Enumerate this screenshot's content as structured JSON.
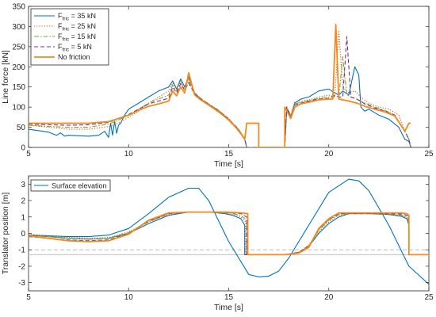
{
  "chart_data": [
    {
      "type": "line",
      "xlabel": "Time [s]",
      "ylabel": "Line force [kN]",
      "xlim": [
        5,
        25
      ],
      "ylim": [
        0,
        350
      ],
      "xticks": [
        "5",
        "10",
        "15",
        "20",
        "25"
      ],
      "yticks": [
        "0",
        "50",
        "100",
        "150",
        "200",
        "250",
        "300",
        "350"
      ],
      "grid": false,
      "legend_position": "top-left",
      "series": [
        {
          "name": "F_fric = 35 kN",
          "legend_main": "F",
          "legend_sub": "fric",
          "legend_rest": " = 35 kN",
          "color": "#0072BD",
          "dash": "solid",
          "x": [
            5,
            6,
            6.4,
            6.6,
            6.8,
            7,
            7.5,
            8,
            8.5,
            8.8,
            9.0,
            9.1,
            9.2,
            9.3,
            9.4,
            9.5,
            9.6,
            9.8,
            10,
            10.5,
            11,
            11.5,
            12,
            12.2,
            12.4,
            12.6,
            12.8,
            13,
            13.3,
            13.6,
            14,
            14.5,
            15,
            15.5,
            15.8,
            15.9,
            17.8,
            17.9,
            18.1,
            18.3,
            18.6,
            19,
            19.5,
            20,
            20.3,
            20.5,
            20.7,
            21,
            21.3,
            21.5,
            21.6,
            21.8,
            22,
            22.5,
            23,
            23.5,
            23.8,
            24,
            24.1
          ],
          "y": [
            45,
            38,
            30,
            36,
            28,
            30,
            29,
            28,
            30,
            40,
            25,
            60,
            30,
            65,
            35,
            55,
            60,
            80,
            95,
            110,
            125,
            140,
            150,
            165,
            145,
            170,
            150,
            175,
            135,
            120,
            105,
            90,
            70,
            40,
            20,
            0,
            0,
            95,
            75,
            110,
            120,
            125,
            140,
            145,
            135,
            130,
            140,
            130,
            200,
            180,
            100,
            90,
            95,
            80,
            70,
            50,
            20,
            15,
            0
          ]
        },
        {
          "name": "F_fric = 25 kN",
          "legend_main": "F",
          "legend_sub": "fric",
          "legend_rest": " = 25 kN",
          "color": "#D95319",
          "dash": "dotted",
          "x": [
            5,
            6,
            7,
            8,
            9,
            9.5,
            10,
            10.5,
            11,
            11.5,
            12,
            12.2,
            12.4,
            12.6,
            12.8,
            13,
            13.3,
            13.6,
            14,
            14.5,
            15,
            15.5,
            15.8,
            15.9,
            17.8,
            17.9,
            18.1,
            18.3,
            18.6,
            19,
            19.5,
            20,
            20.3,
            20.5,
            20.7,
            21,
            21.3,
            21.6,
            22,
            22.5,
            23,
            23.5,
            23.8,
            24,
            24.1
          ],
          "y": [
            55,
            50,
            45,
            45,
            52,
            60,
            75,
            90,
            110,
            125,
            140,
            160,
            145,
            165,
            150,
            170,
            135,
            120,
            108,
            92,
            72,
            45,
            22,
            0,
            0,
            100,
            80,
            112,
            115,
            118,
            125,
            130,
            125,
            290,
            150,
            135,
            140,
            125,
            110,
            100,
            95,
            80,
            40,
            20,
            0
          ]
        },
        {
          "name": "F_fric = 15 kN",
          "legend_main": "F",
          "legend_sub": "fric",
          "legend_rest": " = 15 kN",
          "color": "#77AC30",
          "dash": "dashdot",
          "x": [
            5,
            6,
            7,
            8,
            9,
            9.5,
            10,
            10.5,
            11,
            11.5,
            12,
            12.2,
            12.4,
            12.6,
            12.8,
            13,
            13.3,
            13.6,
            14,
            14.5,
            15,
            15.5,
            15.8,
            15.9,
            17.8,
            17.9,
            18.1,
            18.3,
            18.6,
            19,
            19.5,
            20,
            20.3,
            20.5,
            20.7,
            20.9,
            21.1,
            21.4,
            21.8,
            22.3,
            22.8,
            23.3,
            23.8,
            24,
            24.1
          ],
          "y": [
            55,
            52,
            50,
            50,
            58,
            68,
            80,
            95,
            110,
            120,
            130,
            155,
            140,
            160,
            145,
            165,
            135,
            122,
            108,
            92,
            70,
            45,
            20,
            0,
            0,
            100,
            78,
            108,
            112,
            116,
            122,
            125,
            130,
            125,
            225,
            130,
            125,
            120,
            110,
            100,
            92,
            80,
            40,
            20,
            0
          ]
        },
        {
          "name": "F_fric = 5 kN",
          "legend_main": "F",
          "legend_sub": "fric",
          "legend_rest": " = 5 kN",
          "color": "#7E2F8E",
          "dash": "dashed",
          "x": [
            5,
            6,
            7,
            8,
            9,
            9.5,
            10,
            10.5,
            11,
            11.5,
            12,
            12.2,
            12.4,
            12.6,
            12.8,
            13,
            13.3,
            13.6,
            14,
            14.5,
            15,
            15.5,
            15.8,
            15.9,
            17.8,
            17.9,
            18.1,
            18.3,
            18.6,
            19,
            19.5,
            20,
            20.3,
            20.5,
            20.7,
            20.9,
            21.1,
            21.4,
            21.8,
            22.3,
            22.8,
            23.3,
            23.8,
            24,
            24.1
          ],
          "y": [
            58,
            56,
            55,
            56,
            62,
            72,
            82,
            95,
            108,
            115,
            122,
            150,
            135,
            158,
            142,
            160,
            132,
            120,
            107,
            90,
            70,
            44,
            20,
            0,
            0,
            100,
            76,
            105,
            110,
            115,
            120,
            122,
            128,
            125,
            125,
            275,
            125,
            120,
            108,
            98,
            90,
            80,
            40,
            20,
            0
          ]
        },
        {
          "name": "No friction",
          "legend_main": "No friction",
          "legend_sub": "",
          "legend_rest": "",
          "color": "#EDB120",
          "stroke": "#F28A1D",
          "dash": "solid",
          "x": [
            5,
            6,
            7,
            8,
            9,
            9.5,
            10,
            10.5,
            11,
            11.5,
            12,
            12.2,
            12.4,
            12.6,
            12.8,
            13,
            13.3,
            13.6,
            14,
            14.5,
            15,
            15.5,
            15.8,
            15.9,
            16.5,
            16.5,
            17.8,
            17.8,
            18.1,
            18.3,
            18.6,
            19,
            19.5,
            20,
            20.2,
            20.35,
            20.5,
            20.7,
            21,
            21.4,
            21.8,
            22.3,
            22.8,
            23.3,
            23.8,
            24,
            24.1
          ],
          "y": [
            60,
            60,
            60,
            60,
            64,
            72,
            80,
            92,
            102,
            108,
            115,
            140,
            128,
            150,
            135,
            185,
            130,
            118,
            105,
            88,
            68,
            42,
            20,
            60,
            60,
            0,
            0,
            100,
            72,
            100,
            108,
            112,
            118,
            120,
            120,
            305,
            120,
            118,
            115,
            110,
            102,
            95,
            88,
            78,
            40,
            60,
            60
          ]
        }
      ]
    },
    {
      "type": "line",
      "xlabel": "Time [s]",
      "ylabel": "Translator position [m]",
      "xlim": [
        5,
        25
      ],
      "ylim": [
        -3.5,
        3.5
      ],
      "xticks": [
        "5",
        "10",
        "15",
        "20",
        "25"
      ],
      "yticks": [
        "-3",
        "-2",
        "-1",
        "0",
        "1",
        "2",
        "3"
      ],
      "grid": false,
      "legend_position": "top-left",
      "reference_lines": [
        {
          "y": -1.0,
          "color": "#BDBDBD",
          "dash": "dashed"
        },
        {
          "y": -1.3,
          "color": "#BDBDBD",
          "dash": "solid"
        }
      ],
      "series": [
        {
          "name": "Surface elevation",
          "color": "#0072BD",
          "dash": "solid",
          "x": [
            5,
            6,
            7,
            8,
            9,
            10,
            11,
            12,
            13,
            13.5,
            14,
            15,
            16,
            16.5,
            17,
            17.5,
            18,
            19,
            20,
            21,
            21.5,
            22,
            23,
            24,
            25
          ],
          "y": [
            -0.1,
            -0.15,
            -0.2,
            -0.2,
            -0.1,
            0.3,
            1.2,
            2.2,
            2.75,
            2.75,
            2.0,
            -0.5,
            -2.5,
            -2.65,
            -2.6,
            -2.3,
            -1.5,
            0.5,
            2.5,
            3.3,
            3.2,
            2.6,
            0.5,
            -2.0,
            -3.1
          ]
        },
        {
          "name": "F_fric = 35 kN",
          "color": "#0072BD",
          "dash": "solid",
          "x": [
            5,
            6,
            7,
            8,
            9,
            10,
            11,
            12,
            13,
            14,
            14.8,
            15.2,
            15.6,
            15.8,
            15.8,
            17.8,
            18.5,
            19,
            19.5,
            20,
            20.5,
            21,
            22,
            23,
            23.6,
            23.9,
            24,
            24,
            25
          ],
          "y": [
            -0.1,
            -0.2,
            -0.3,
            -0.35,
            -0.3,
            0.0,
            0.6,
            1.1,
            1.3,
            1.3,
            1.2,
            1.1,
            0.9,
            0.5,
            -1.3,
            -1.3,
            -1.2,
            -0.8,
            0.0,
            0.6,
            1.0,
            1.2,
            1.2,
            1.15,
            1.05,
            0.9,
            0.5,
            -1.3,
            -1.3
          ]
        },
        {
          "name": "F_fric = 25 kN",
          "color": "#D95319",
          "dash": "dotted",
          "x": [
            5,
            6,
            7,
            8,
            9,
            10,
            11,
            12,
            13,
            14,
            14.8,
            15.2,
            15.6,
            15.85,
            15.85,
            17.8,
            18.5,
            19,
            19.5,
            20,
            20.5,
            21,
            22,
            23,
            23.6,
            23.9,
            24,
            24,
            25
          ],
          "y": [
            -0.05,
            -0.15,
            -0.25,
            -0.3,
            -0.25,
            0.1,
            0.7,
            1.15,
            1.3,
            1.3,
            1.22,
            1.15,
            1.0,
            0.7,
            -1.3,
            -1.3,
            -1.15,
            -0.7,
            0.1,
            0.7,
            1.1,
            1.2,
            1.2,
            1.15,
            1.1,
            0.95,
            0.6,
            -1.3,
            -1.3
          ]
        },
        {
          "name": "F_fric = 15 kN",
          "color": "#77AC30",
          "dash": "dashdot",
          "x": [
            5,
            6,
            7,
            8,
            9,
            10,
            11,
            12,
            13,
            14,
            14.8,
            15.2,
            15.6,
            15.9,
            15.9,
            17.8,
            18.5,
            19,
            19.5,
            20,
            20.5,
            21,
            22,
            23,
            23.6,
            23.9,
            24,
            24,
            25
          ],
          "y": [
            -0.1,
            -0.2,
            -0.3,
            -0.35,
            -0.3,
            0.05,
            0.7,
            1.2,
            1.3,
            1.3,
            1.25,
            1.2,
            1.1,
            0.8,
            -1.3,
            -1.3,
            -1.15,
            -0.75,
            0.2,
            0.8,
            1.15,
            1.2,
            1.2,
            1.18,
            1.12,
            1.0,
            0.7,
            -1.3,
            -1.3
          ]
        },
        {
          "name": "F_fric = 5 kN",
          "color": "#7E2F8E",
          "dash": "dashed",
          "x": [
            5,
            6,
            7,
            8,
            9,
            10,
            11,
            12,
            13,
            14,
            14.8,
            15.2,
            15.6,
            15.9,
            15.9,
            17.8,
            18.5,
            19,
            19.5,
            20,
            20.5,
            21,
            22,
            23,
            23.6,
            23.9,
            24,
            24,
            25
          ],
          "y": [
            -0.2,
            -0.3,
            -0.4,
            -0.45,
            -0.4,
            0.0,
            0.75,
            1.2,
            1.3,
            1.3,
            1.28,
            1.25,
            1.2,
            1.0,
            -1.3,
            -1.3,
            -1.15,
            -0.8,
            0.25,
            0.85,
            1.2,
            1.2,
            1.2,
            1.2,
            1.18,
            1.1,
            0.9,
            -1.3,
            -1.3
          ]
        },
        {
          "name": "No friction",
          "color": "#EDB120",
          "stroke": "#F28A1D",
          "dash": "solid",
          "x": [
            5,
            6,
            7,
            8,
            9,
            10,
            11,
            12,
            13,
            14,
            14.8,
            15.2,
            15.6,
            15.95,
            15.95,
            17.8,
            18.5,
            19,
            19.5,
            20,
            20.5,
            21,
            22,
            23,
            23.6,
            23.9,
            24,
            24,
            25
          ],
          "y": [
            -0.15,
            -0.3,
            -0.45,
            -0.5,
            -0.45,
            -0.05,
            0.8,
            1.25,
            1.3,
            1.3,
            1.3,
            1.28,
            1.25,
            1.2,
            -1.3,
            -1.3,
            -1.2,
            -0.85,
            0.3,
            0.9,
            1.25,
            1.25,
            1.25,
            1.25,
            1.25,
            1.2,
            1.1,
            -1.3,
            -1.3
          ]
        }
      ]
    }
  ]
}
